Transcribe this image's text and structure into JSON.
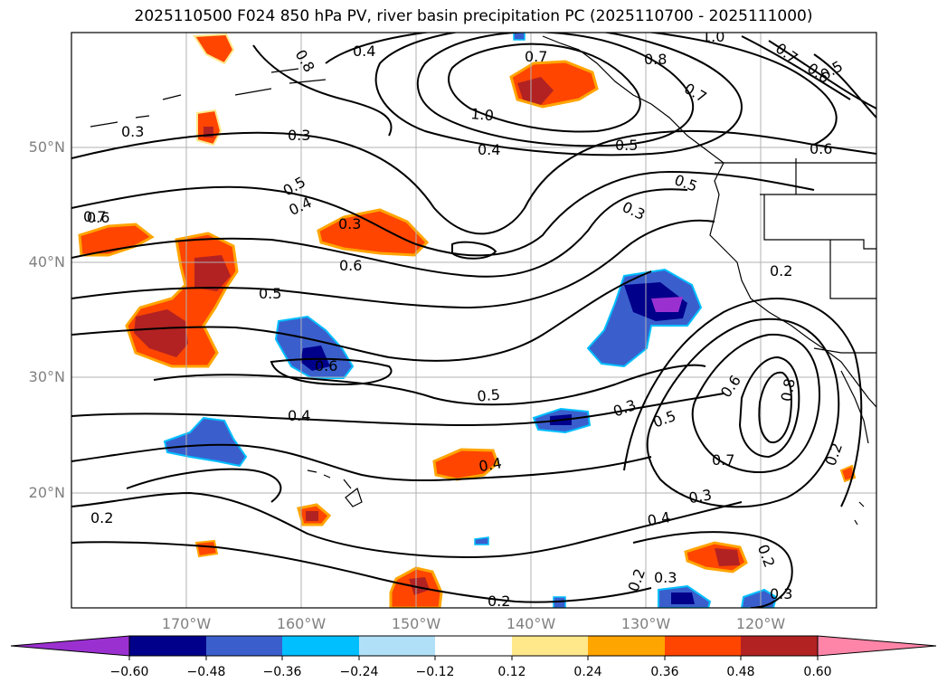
{
  "title": "2025110500 F024 850 hPa PV, river basin precipitation PC (2025110700 - 2025111000)",
  "lat_labels": [
    "50°N",
    "40°N",
    "30°N",
    "20°N"
  ],
  "lon_labels": [
    "170°W",
    "160°W",
    "150°W",
    "140°W",
    "130°W",
    "120°W"
  ],
  "colorbar": {
    "ticks": [
      "−0.60",
      "−0.48",
      "−0.36",
      "−0.24",
      "−0.12",
      "0.12",
      "0.24",
      "0.36",
      "0.48",
      "0.60"
    ],
    "colors": [
      "#9b30d0",
      "#00008b",
      "#3a5fcd",
      "#00bfff",
      "#b0e0f8",
      "#ffffff",
      "#ffe88a",
      "#ffa500",
      "#ff4500",
      "#b22222",
      "#ff85a8"
    ]
  },
  "contour_labels": [
    "1.0",
    "0.8",
    "0.7",
    "0.8",
    "0.4",
    "0.7",
    "0.6",
    "0.5",
    "0.7",
    "0.6",
    "1.0",
    "0.3",
    "0.3",
    "0.4",
    "0.5",
    "0.6",
    "0.5",
    "0.5",
    "0.4",
    "0.3",
    "0.3",
    "0.7",
    "0.2",
    "0.6",
    "0.5",
    "0.6",
    "0.5",
    "0.4",
    "0.3",
    "0.5",
    "0.6",
    "0.8",
    "0.7",
    "0.4",
    "0.3",
    "0.2",
    "0.4",
    "0.2",
    "0.2",
    "0.3",
    "0.2",
    "0.2",
    "0.3"
  ]
}
